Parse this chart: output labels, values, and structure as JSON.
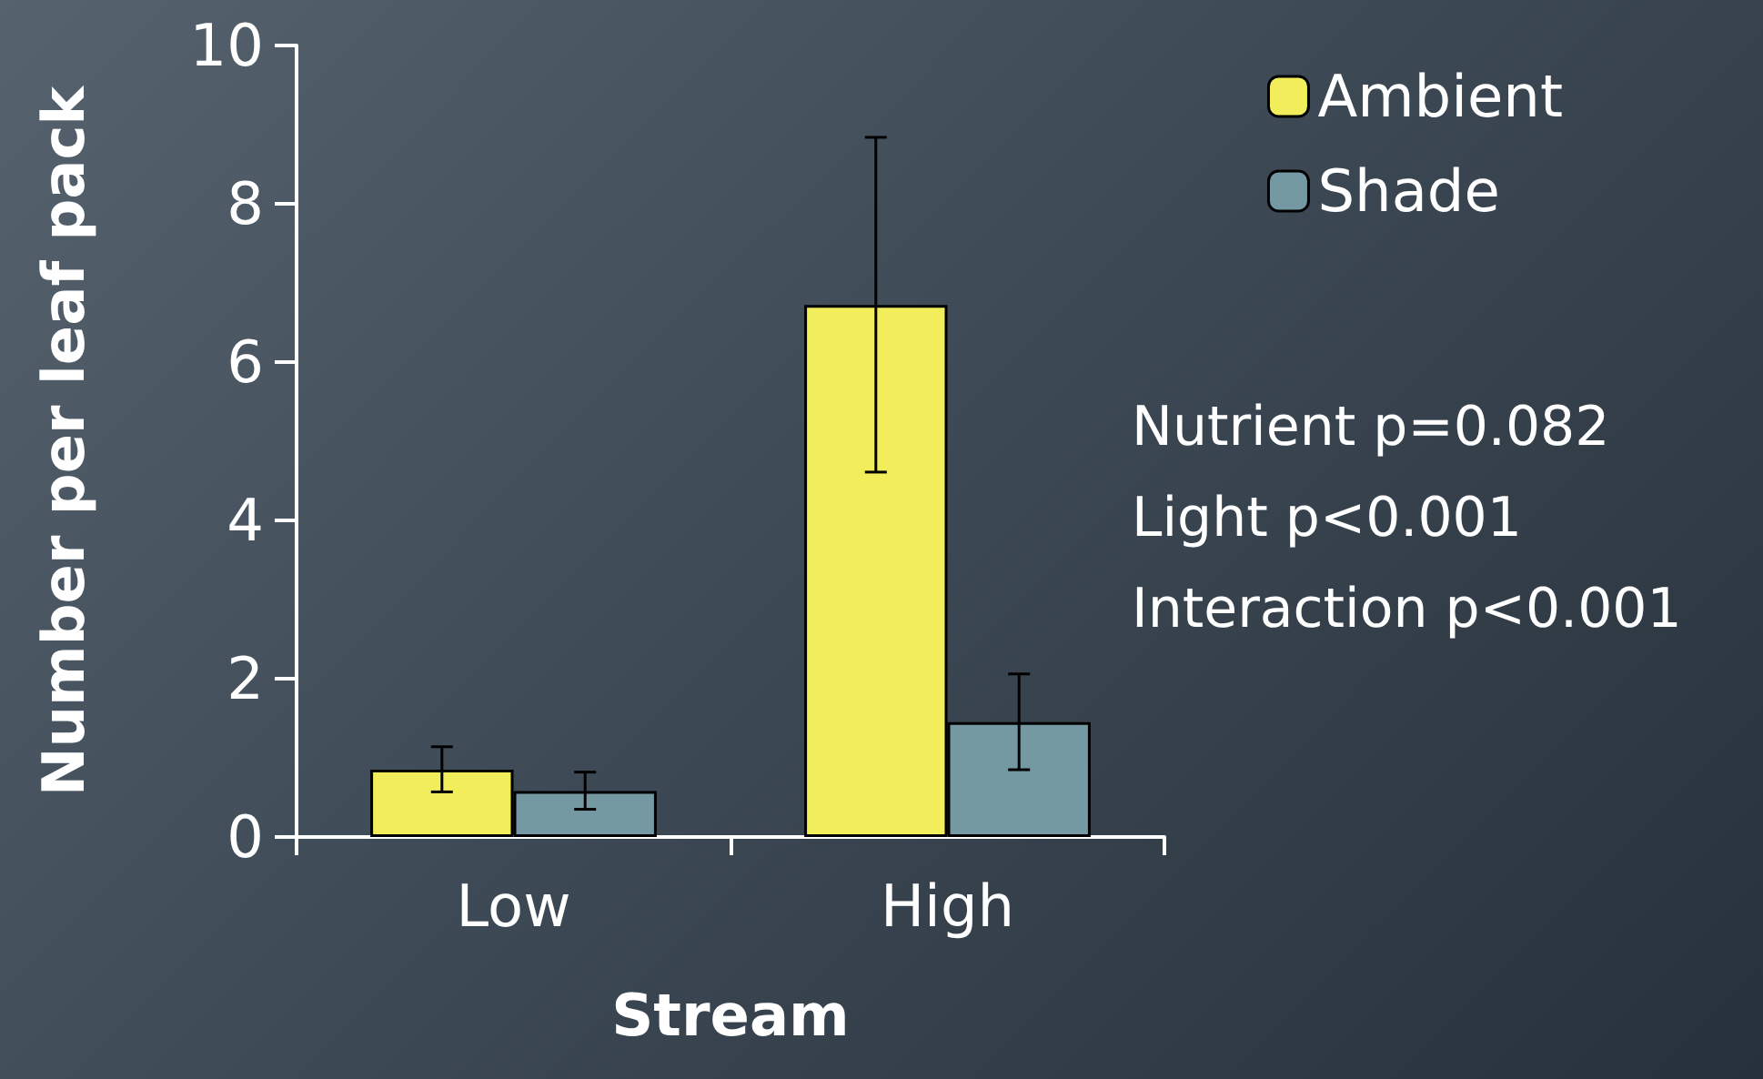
{
  "chart_data": {
    "type": "bar",
    "xlabel": "Stream",
    "ylabel": "Number per leaf pack",
    "categories": [
      "Low",
      "High"
    ],
    "series": [
      {
        "name": "Ambient",
        "color": "#f2ed5a",
        "values": [
          0.85,
          6.72
        ],
        "errors": [
          [
            0.57,
            1.14
          ],
          [
            4.61,
            8.84
          ]
        ]
      },
      {
        "name": "Shade",
        "color": "#7599a3",
        "values": [
          0.58,
          1.45
        ],
        "errors": [
          [
            0.35,
            0.82
          ],
          [
            0.85,
            2.06
          ]
        ]
      }
    ],
    "ylim": [
      0,
      10
    ],
    "yticks": [
      0,
      2,
      4,
      6,
      8,
      10
    ],
    "grid": false,
    "legend": "top right",
    "annotations": [
      "Nutrient p=0.082",
      "Light p<0.001",
      "Interaction p<0.001"
    ]
  }
}
